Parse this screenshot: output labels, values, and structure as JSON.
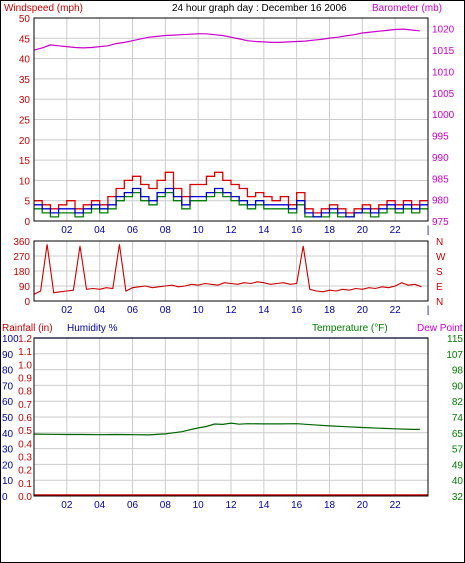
{
  "header": {
    "title": "24 hour graph day : December 16 2006",
    "windspeed_label": "Windspeed (mph)",
    "barometer_label": "Barometer (mb)"
  },
  "colors": {
    "wind_gust": "#dd0000",
    "wind_avg": "#008000",
    "wind_blue": "#0000cc",
    "barometer": "#cc00cc",
    "direction": "#cc0000",
    "humidity": "#0000cc",
    "temperature": "#006600",
    "rainfall": "#cc0000",
    "grid": "#cccccc",
    "axis_red": "#cc0000",
    "axis_blue": "#0000aa",
    "axis_green": "#008000",
    "axis_magenta": "#cc00cc"
  },
  "chart_data": [
    {
      "type": "line",
      "title": "24 hour graph day : December 16 2006",
      "x_ticks": [
        "02",
        "04",
        "06",
        "08",
        "10",
        "12",
        "14",
        "16",
        "18",
        "20",
        "22",
        "|"
      ],
      "y_left": {
        "label": "Windspeed (mph)",
        "ticks": [
          "0",
          "5",
          "10",
          "15",
          "20",
          "25",
          "30",
          "35",
          "40",
          "45",
          "50"
        ],
        "range": [
          0,
          50
        ]
      },
      "y_right": {
        "label": "Barometer (mb)",
        "ticks": [
          "975",
          "980",
          "985",
          "990",
          "995",
          "1000",
          "1005",
          "1010",
          "1015",
          "1020"
        ],
        "range": [
          975,
          1022.5
        ]
      },
      "series": [
        {
          "name": "Windspeed (mph)",
          "axis": "left",
          "style": "gust",
          "x": [
            0.0,
            0.5,
            1.0,
            1.5,
            2.0,
            2.5,
            3.0,
            3.5,
            4.0,
            4.5,
            5.0,
            5.5,
            6.0,
            6.5,
            7.0,
            7.5,
            8.0,
            8.5,
            9.0,
            9.5,
            10.0,
            10.5,
            11.0,
            11.5,
            12.0,
            12.5,
            13.0,
            13.5,
            14.0,
            14.5,
            15.0,
            15.5,
            16.0,
            16.5,
            17.0,
            17.5,
            18.0,
            18.5,
            19.0,
            19.5,
            20.0,
            20.5,
            21.0,
            21.5,
            22.0,
            22.5,
            23.0,
            23.5
          ],
          "y": [
            5,
            4,
            3,
            4,
            5,
            3,
            4,
            5,
            4,
            6,
            8,
            10,
            11,
            9,
            8,
            10,
            12,
            8,
            6,
            9,
            9,
            11,
            12,
            10,
            9,
            8,
            6,
            7,
            6,
            5,
            6,
            4,
            7,
            3,
            2,
            3,
            4,
            3,
            2,
            3,
            4,
            3,
            4,
            5,
            4,
            5,
            4,
            5
          ]
        },
        {
          "name": "Windspeed (mph)",
          "axis": "left",
          "style": "average",
          "x": [
            0.0,
            0.5,
            1.0,
            1.5,
            2.0,
            2.5,
            3.0,
            3.5,
            4.0,
            4.5,
            5.0,
            5.5,
            6.0,
            6.5,
            7.0,
            7.5,
            8.0,
            8.5,
            9.0,
            9.5,
            10.0,
            10.5,
            11.0,
            11.5,
            12.0,
            12.5,
            13.0,
            13.5,
            14.0,
            14.5,
            15.0,
            15.5,
            16.0,
            16.5,
            17.0,
            17.5,
            18.0,
            18.5,
            19.0,
            19.5,
            20.0,
            20.5,
            21.0,
            21.5,
            22.0,
            22.5,
            23.0,
            23.5
          ],
          "y": [
            3,
            2,
            1,
            2,
            2,
            1,
            2,
            3,
            2,
            3,
            5,
            6,
            7,
            5,
            4,
            6,
            7,
            5,
            3,
            5,
            5,
            6,
            7,
            6,
            5,
            4,
            3,
            4,
            3,
            3,
            3,
            2,
            4,
            1,
            1,
            1,
            2,
            1,
            1,
            2,
            2,
            1,
            2,
            3,
            2,
            3,
            2,
            3
          ]
        },
        {
          "name": "Windspeed (mph)",
          "axis": "left",
          "style": "blue",
          "x": [
            0.0,
            0.5,
            1.0,
            1.5,
            2.0,
            2.5,
            3.0,
            3.5,
            4.0,
            4.5,
            5.0,
            5.5,
            6.0,
            6.5,
            7.0,
            7.5,
            8.0,
            8.5,
            9.0,
            9.5,
            10.0,
            10.5,
            11.0,
            11.5,
            12.0,
            12.5,
            13.0,
            13.5,
            14.0,
            14.5,
            15.0,
            15.5,
            16.0,
            16.5,
            17.0,
            17.5,
            18.0,
            18.5,
            19.0,
            19.5,
            20.0,
            20.5,
            21.0,
            21.5,
            22.0,
            22.5,
            23.0,
            23.5
          ],
          "y": [
            4,
            3,
            2,
            3,
            3,
            2,
            3,
            4,
            3,
            4,
            6,
            7,
            8,
            6,
            5,
            7,
            8,
            6,
            4,
            6,
            6,
            7,
            8,
            7,
            6,
            5,
            4,
            5,
            4,
            4,
            4,
            3,
            5,
            2,
            1,
            2,
            3,
            2,
            1,
            2,
            3,
            2,
            3,
            4,
            3,
            4,
            3,
            4
          ]
        },
        {
          "name": "Barometer (mb)",
          "axis": "right",
          "x": [
            0.0,
            0.5,
            1.0,
            1.5,
            2.0,
            2.5,
            3.0,
            3.5,
            4.0,
            4.5,
            5.0,
            5.5,
            6.0,
            6.5,
            7.0,
            7.5,
            8.0,
            8.5,
            9.0,
            9.5,
            10.0,
            10.5,
            11.0,
            11.5,
            12.0,
            12.5,
            13.0,
            13.5,
            14.0,
            14.5,
            15.0,
            15.5,
            16.0,
            16.5,
            17.0,
            17.5,
            18.0,
            18.5,
            19.0,
            19.5,
            20.0,
            20.5,
            21.0,
            21.5,
            22.0,
            22.5,
            23.0,
            23.5
          ],
          "y": [
            1015.0,
            1015.5,
            1016.2,
            1016.0,
            1015.8,
            1015.6,
            1015.5,
            1015.6,
            1015.8,
            1016.0,
            1016.5,
            1016.8,
            1017.2,
            1017.6,
            1018.0,
            1018.2,
            1018.4,
            1018.5,
            1018.6,
            1018.7,
            1018.8,
            1018.8,
            1018.6,
            1018.4,
            1018.0,
            1017.6,
            1017.2,
            1017.0,
            1016.9,
            1016.8,
            1016.8,
            1016.9,
            1017.0,
            1017.1,
            1017.3,
            1017.5,
            1017.8,
            1018.0,
            1018.3,
            1018.6,
            1019.0,
            1019.2,
            1019.4,
            1019.6,
            1019.8,
            1019.9,
            1019.7,
            1019.5
          ]
        }
      ]
    },
    {
      "type": "line",
      "title": "",
      "x_ticks": [
        "02",
        "04",
        "06",
        "08",
        "10",
        "12",
        "14",
        "16",
        "18",
        "20",
        "22",
        "|"
      ],
      "y_left": {
        "label": "",
        "ticks": [
          "0",
          "90",
          "180",
          "270",
          "360"
        ],
        "range": [
          0,
          360
        ]
      },
      "y_right": {
        "label": "",
        "ticks": [
          "N",
          "W",
          "S",
          "E",
          "N"
        ]
      },
      "series": [
        {
          "name": "",
          "axis": "left",
          "x": [
            0.0,
            0.4,
            0.8,
            1.2,
            1.6,
            2.0,
            2.4,
            2.8,
            3.2,
            3.6,
            4.0,
            4.4,
            4.8,
            5.2,
            5.6,
            6.0,
            6.4,
            6.8,
            7.2,
            7.6,
            8.0,
            8.4,
            8.8,
            9.2,
            9.6,
            10.0,
            10.4,
            10.8,
            11.2,
            11.6,
            12.0,
            12.4,
            12.8,
            13.2,
            13.6,
            14.0,
            14.4,
            14.8,
            15.2,
            15.6,
            16.0,
            16.4,
            16.8,
            17.2,
            17.6,
            18.0,
            18.4,
            18.8,
            19.2,
            19.6,
            20.0,
            20.4,
            20.8,
            21.2,
            21.6,
            22.0,
            22.4,
            22.8,
            23.2,
            23.6
          ],
          "y": [
            40,
            60,
            340,
            50,
            55,
            60,
            65,
            330,
            70,
            75,
            70,
            80,
            75,
            340,
            60,
            80,
            85,
            90,
            80,
            85,
            90,
            95,
            85,
            90,
            100,
            95,
            105,
            100,
            95,
            110,
            105,
            100,
            110,
            105,
            115,
            110,
            100,
            105,
            110,
            100,
            105,
            330,
            70,
            60,
            55,
            65,
            60,
            70,
            65,
            75,
            70,
            80,
            75,
            85,
            80,
            90,
            110,
            95,
            100,
            85
          ]
        }
      ]
    },
    {
      "type": "line",
      "title": "",
      "x_ticks": [
        "02",
        "04",
        "06",
        "08",
        "10",
        "12",
        "14",
        "16",
        "18",
        "20",
        "22"
      ],
      "y_left_rainfall": {
        "label": "Rainfall (in)",
        "ticks": [
          "0.0",
          "0.1",
          "0.2",
          "0.3",
          "0.4",
          "0.5",
          "0.6",
          "0.7",
          "0.8",
          "0.9",
          "1.0",
          "1.1",
          "1.2"
        ],
        "range": [
          0,
          1.2
        ]
      },
      "y_left_humidity": {
        "label": "Humidity %",
        "ticks": [
          "0",
          "10",
          "20",
          "30",
          "40",
          "50",
          "60",
          "70",
          "80",
          "90",
          "100"
        ],
        "range": [
          0,
          100
        ]
      },
      "y_right": {
        "label": "Temperature (°F)",
        "ticks": [
          "32",
          "40",
          "49",
          "57",
          "65",
          "74",
          "82",
          "90",
          "98",
          "107",
          "115"
        ],
        "range": [
          32,
          115
        ]
      },
      "dew_point_label": "Dew Point",
      "series": [
        {
          "name": "Humidity %",
          "axis": "left_humidity",
          "x": [
            0,
            24
          ],
          "y": [
            100,
            100
          ]
        },
        {
          "name": "Rainfall (in)",
          "axis": "left_rainfall",
          "x": [
            0,
            24
          ],
          "y": [
            0,
            0
          ]
        },
        {
          "name": "Temperature (°F)",
          "axis": "right",
          "x": [
            0.0,
            1.0,
            2.0,
            3.0,
            4.0,
            5.0,
            6.0,
            7.0,
            8.0,
            9.0,
            10.0,
            10.5,
            11.0,
            11.5,
            12.0,
            12.5,
            13.0,
            14.0,
            15.0,
            16.0,
            17.0,
            18.0,
            19.0,
            20.0,
            21.0,
            22.0,
            23.0,
            23.5
          ],
          "y": [
            64.5,
            64.4,
            64.3,
            64.3,
            64.2,
            64.3,
            64.2,
            64.1,
            64.6,
            65.8,
            67.8,
            68.5,
            69.8,
            69.6,
            70.3,
            69.7,
            70.0,
            69.9,
            69.9,
            70.0,
            69.4,
            68.8,
            68.4,
            68.0,
            67.6,
            67.3,
            67.0,
            67.0
          ]
        }
      ]
    }
  ]
}
